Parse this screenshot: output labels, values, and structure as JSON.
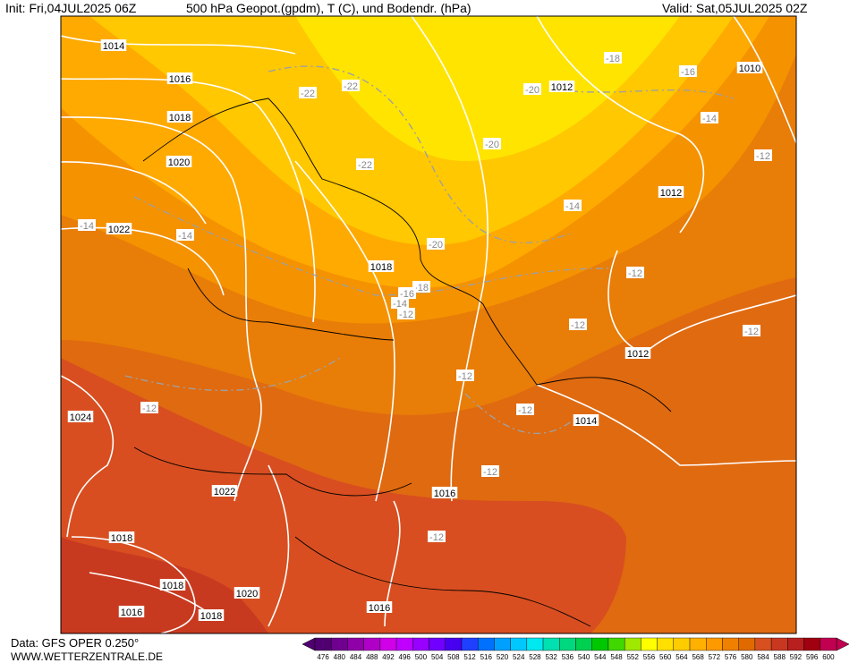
{
  "header": {
    "init": "Init: Fri,04JUL2025 06Z",
    "title": "500 hPa Geopot.(gpdm), T (C), und Bodendr. (hPa)",
    "valid": "Valid: Sat,05JUL2025 02Z"
  },
  "footer": {
    "data": "Data: GFS OPER 0.250°",
    "site": "WWW.WETTERZENTRALE.DE"
  },
  "map": {
    "isobar_labels": [
      "1014",
      "1016",
      "1018",
      "1020",
      "1022",
      "1018",
      "1012",
      "1010",
      "1012",
      "1012",
      "1014",
      "1024",
      "1022",
      "1016",
      "1018",
      "1018",
      "1020",
      "1016",
      "1018",
      "1016"
    ],
    "temperature_labels": [
      "-22",
      "-22",
      "-22",
      "-18",
      "-16",
      "-20",
      "-14",
      "-20",
      "-12",
      "-14",
      "-20",
      "-14",
      "-14",
      "-18",
      "-16",
      "-14",
      "-12",
      "-12",
      "-12",
      "-12",
      "-12",
      "-12",
      "-12",
      "-12",
      "-12"
    ]
  },
  "colorbar": {
    "labels": [
      476,
      480,
      484,
      488,
      492,
      496,
      500,
      504,
      508,
      512,
      516,
      520,
      524,
      528,
      532,
      536,
      540,
      544,
      548,
      552,
      556,
      560,
      564,
      568,
      572,
      576,
      580,
      584,
      588,
      592,
      596,
      600
    ],
    "colors": [
      "#500070",
      "#700090",
      "#9000a8",
      "#b000c8",
      "#d000e8",
      "#c000ff",
      "#9800ff",
      "#7000ff",
      "#4800f0",
      "#2040ff",
      "#0070ff",
      "#00a0ff",
      "#00c8ff",
      "#00e8f0",
      "#00e0b0",
      "#00d880",
      "#00d050",
      "#00c800",
      "#40d800",
      "#a0e800",
      "#ffff00",
      "#ffe000",
      "#ffcc00",
      "#ffb000",
      "#ff9900",
      "#f08000",
      "#e06a00",
      "#d85020",
      "#c83820",
      "#b82020",
      "#a00010",
      "#c00050"
    ]
  }
}
